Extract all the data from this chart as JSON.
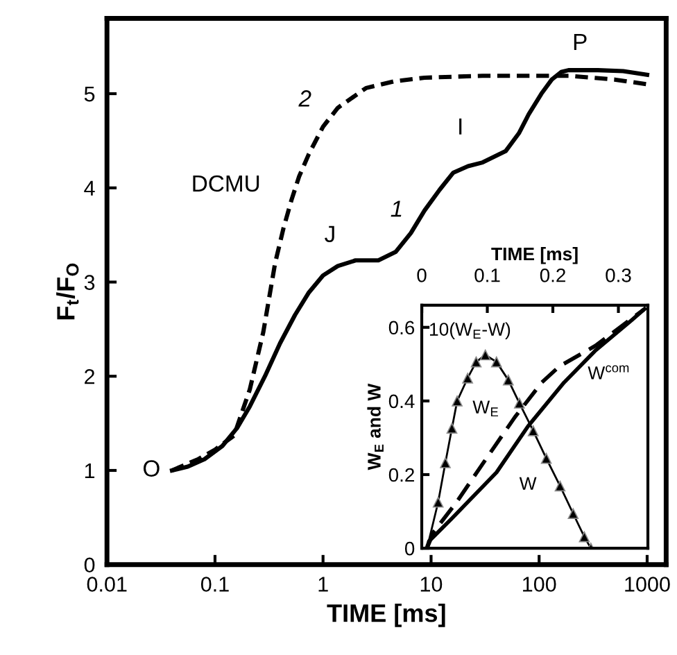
{
  "chart_data": [
    {
      "type": "line",
      "xlabel": "TIME [ms]",
      "ylabel": "F$_{t}$/F$_{O}$",
      "log": "x",
      "xlim": [
        0.01,
        1500
      ],
      "ylim": [
        0,
        5.8
      ],
      "xticks": [
        0.01,
        0.1,
        1,
        10,
        100,
        1000
      ],
      "yticks": [
        0,
        1,
        2,
        3,
        4,
        5
      ],
      "grid": false,
      "marker": "none",
      "series": [
        {
          "color": "#000000",
          "line_style": "solid",
          "x": [
            0.04,
            0.056,
            0.08,
            0.117,
            0.16,
            0.21,
            0.29,
            0.4,
            0.55,
            0.74,
            1.0,
            1.37,
            2.0,
            3.25,
            4.7,
            6.5,
            8.7,
            12,
            16,
            22,
            30,
            49,
            65,
            80,
            105,
            131,
            160,
            187,
            350,
            600,
            1000
          ],
          "values": [
            1.0,
            1.04,
            1.12,
            1.26,
            1.45,
            1.68,
            2.0,
            2.35,
            2.65,
            2.89,
            3.07,
            3.17,
            3.23,
            3.23,
            3.32,
            3.52,
            3.76,
            3.98,
            4.16,
            4.23,
            4.27,
            4.39,
            4.58,
            4.78,
            5.0,
            5.15,
            5.23,
            5.25,
            5.25,
            5.24,
            5.2
          ]
        },
        {
          "color": "#000000",
          "line_style": "dashed",
          "x": [
            0.04,
            0.07,
            0.1,
            0.15,
            0.21,
            0.28,
            0.36,
            0.43,
            0.51,
            0.6,
            0.74,
            1.0,
            1.37,
            2.5,
            4.5,
            8.7,
            30,
            190,
            500,
            1000
          ],
          "values": [
            1.0,
            1.12,
            1.22,
            1.37,
            1.86,
            2.47,
            3.2,
            3.57,
            3.87,
            4.12,
            4.36,
            4.65,
            4.85,
            5.06,
            5.13,
            5.17,
            5.19,
            5.19,
            5.15,
            5.1
          ]
        }
      ],
      "annotations": [
        {
          "text": "O",
          "x": 0.04,
          "y": 1.0
        },
        {
          "text": "J",
          "x": 1.37,
          "y": 3.17
        },
        {
          "text": "I",
          "x": 22,
          "y": 4.23
        },
        {
          "text": "P",
          "x": 187,
          "y": 5.25
        },
        {
          "text": "1",
          "x": 6.5,
          "y": 3.52
        },
        {
          "text": "2",
          "x": 1.0,
          "y": 4.65
        },
        {
          "text": "DCMU",
          "x": 0.51,
          "y": 3.87
        }
      ]
    },
    {
      "type": "line",
      "xlabel": "TIME [ms]",
      "ylabel": "W$_{E}$ and W",
      "xlim": [
        0,
        0.345
      ],
      "ylim": [
        0,
        0.66
      ],
      "xticks": [
        0,
        0.1,
        0.2,
        0.3
      ],
      "yticks": [
        0,
        0.2,
        0.4,
        0.6
      ],
      "grid": false,
      "series": [
        {
          "color": "#000000",
          "line_style": "solid",
          "marker": "triangle",
          "x": [
            0.008,
            0.025,
            0.036,
            0.046,
            0.054,
            0.07,
            0.083,
            0.097,
            0.114,
            0.132,
            0.149,
            0.17,
            0.19,
            0.211,
            0.231,
            0.248,
            0.258
          ],
          "values": [
            0.0,
            0.125,
            0.232,
            0.326,
            0.4,
            0.462,
            0.506,
            0.525,
            0.506,
            0.457,
            0.394,
            0.319,
            0.244,
            0.169,
            0.094,
            0.031,
            0.0
          ]
        },
        {
          "color": "#000000",
          "line_style": "dashed",
          "x": [
            0.008,
            0.018,
            0.053,
            0.094,
            0.142,
            0.183,
            0.21,
            0.265,
            0.34
          ],
          "values": [
            0.0,
            0.044,
            0.125,
            0.232,
            0.356,
            0.45,
            0.494,
            0.55,
            0.65
          ]
        },
        {
          "color": "#000000",
          "line_style": "solid",
          "x": [
            0.008,
            0.011,
            0.046,
            0.114,
            0.162,
            0.217,
            0.265,
            0.32,
            0.34
          ],
          "values": [
            0.0,
            0.019,
            0.081,
            0.206,
            0.331,
            0.45,
            0.537,
            0.619,
            0.65
          ]
        }
      ],
      "annotations": [
        {
          "text": "10(W$_{E}$-W)",
          "x": 0.097,
          "y": 0.525
        },
        {
          "text": "W$_{E}$",
          "x": 0.054,
          "y": 0.4
        },
        {
          "text": "W",
          "x": 0.162,
          "y": 0.331
        },
        {
          "text": "W$^{com}$",
          "x": 0.265,
          "y": 0.537
        }
      ]
    }
  ]
}
